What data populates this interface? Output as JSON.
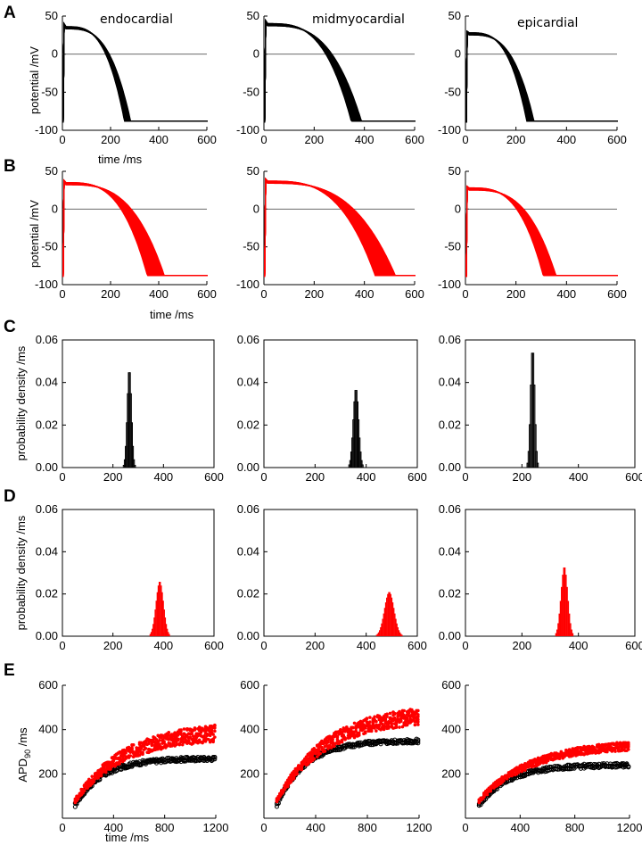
{
  "colors": {
    "control": "#000000",
    "variable": "#ff0000",
    "axis": "#000000"
  },
  "panel_labels": [
    "A",
    "B",
    "C",
    "D",
    "E"
  ],
  "chart_data": [
    {
      "panel": "A",
      "type": "line",
      "color_key": "control",
      "columns": [
        "endocardial",
        "midmyocardial",
        "epicardial"
      ],
      "title": "",
      "xlabel": "time /ms",
      "ylabel": "potential /mV",
      "xlim": [
        0,
        600
      ],
      "ylim": [
        -100,
        50
      ],
      "xticks": [
        0,
        200,
        400,
        600
      ],
      "yticks": [
        -100,
        -50,
        0,
        50
      ],
      "zero_line": true,
      "traces": [
        {
          "apd_range": [
            255,
            280
          ],
          "peak": 40,
          "dome": 36
        },
        {
          "apd_range": [
            345,
            385
          ],
          "peak": 44,
          "dome": 40
        },
        {
          "apd_range": [
            240,
            268
          ],
          "peak": 30,
          "dome": 28
        }
      ]
    },
    {
      "panel": "B",
      "type": "line",
      "color_key": "variable",
      "columns": [
        "",
        "",
        ""
      ],
      "xlabel": "time /ms",
      "ylabel": "potential /mV",
      "xlim": [
        0,
        600
      ],
      "ylim": [
        -100,
        50
      ],
      "xticks": [
        0,
        200,
        400,
        600
      ],
      "yticks": [
        -100,
        -50,
        0,
        50
      ],
      "zero_line": true,
      "traces": [
        {
          "apd_range": [
            350,
            420
          ],
          "peak": 38,
          "dome": 35
        },
        {
          "apd_range": [
            440,
            520
          ],
          "peak": 40,
          "dome": 37
        },
        {
          "apd_range": [
            305,
            355
          ],
          "peak": 30,
          "dome": 28
        }
      ]
    },
    {
      "panel": "C",
      "type": "histogram",
      "color_key": "control",
      "ylabel": "probability density /ms",
      "xlim": [
        0,
        600
      ],
      "ylim": [
        0,
        0.06
      ],
      "xticks": [
        0,
        200,
        400,
        600
      ],
      "yticks": [
        0.0,
        0.02,
        0.04,
        0.06
      ],
      "ytick_labels": [
        "0.00",
        "0.02",
        "0.04",
        "0.06"
      ],
      "hists": [
        {
          "mean": 265,
          "peak": 0.046,
          "sd": 8
        },
        {
          "mean": 360,
          "peak": 0.037,
          "sd": 10
        },
        {
          "mean": 238,
          "peak": 0.056,
          "sd": 7
        }
      ]
    },
    {
      "panel": "D",
      "type": "histogram",
      "color_key": "variable",
      "ylabel": "probability density /ms",
      "xlim": [
        0,
        600
      ],
      "ylim": [
        0,
        0.06
      ],
      "xticks": [
        0,
        200,
        400,
        600
      ],
      "yticks": [
        0.0,
        0.02,
        0.04,
        0.06
      ],
      "ytick_labels": [
        "0.00",
        "0.02",
        "0.04",
        "0.06"
      ],
      "hists": [
        {
          "mean": 385,
          "peak": 0.026,
          "sd": 15
        },
        {
          "mean": 490,
          "peak": 0.021,
          "sd": 19
        },
        {
          "mean": 350,
          "peak": 0.033,
          "sd": 12
        }
      ]
    },
    {
      "panel": "E",
      "type": "scatter",
      "ylabel": "APD90 /ms",
      "ylabel_main": "APD",
      "ylabel_sub": "90",
      "ylabel_rest": " /ms",
      "xlabel": "time /ms",
      "xlim": [
        0,
        1200
      ],
      "ylim": [
        0,
        600
      ],
      "xticks": [
        0,
        400,
        800,
        1200
      ],
      "yticks": [
        0,
        200,
        400,
        600
      ],
      "ytick_labels": [
        "",
        "200",
        "400",
        "600"
      ],
      "restitution": [
        {
          "black_end": 270,
          "red_low": 360,
          "red_high": 440
        },
        {
          "black_end": 350,
          "red_low": 440,
          "red_high": 520
        },
        {
          "black_end": 240,
          "red_low": 320,
          "red_high": 360
        }
      ]
    }
  ]
}
